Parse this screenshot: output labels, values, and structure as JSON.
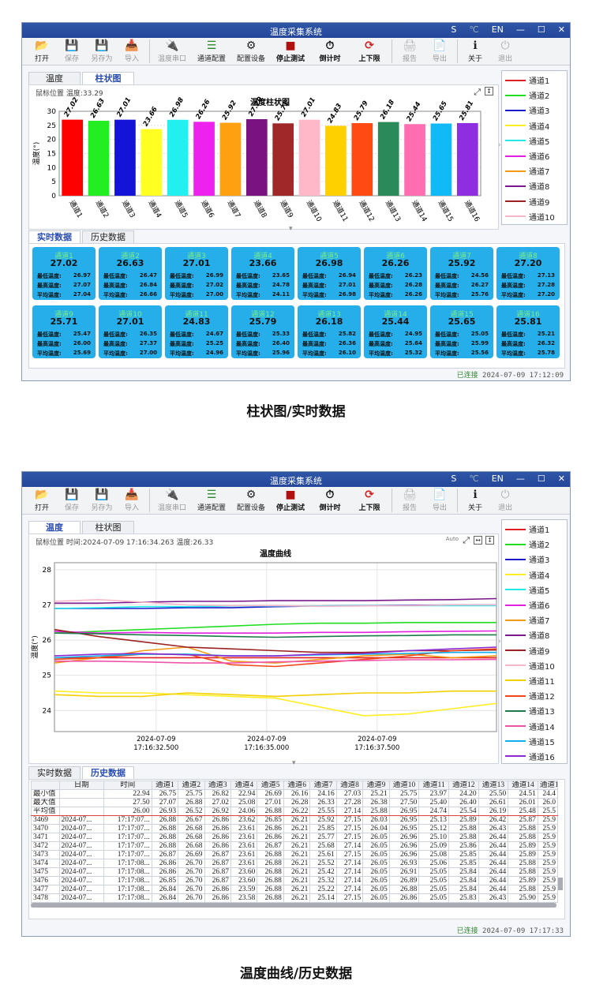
{
  "app": {
    "title": "温度采集系统",
    "ctrl_s": "S",
    "ctrl_c": "℃",
    "ctrl_en": "EN",
    "ctrl_min": "—",
    "ctrl_max": "☐",
    "ctrl_close": "✕"
  },
  "toolbar": [
    {
      "label": "打开",
      "icon": "📂",
      "dis": false
    },
    {
      "label": "保存",
      "icon": "💾",
      "dis": true
    },
    {
      "label": "另存为",
      "icon": "💾",
      "dis": true
    },
    {
      "label": "导入",
      "icon": "📥",
      "dis": true
    },
    {
      "sep": true
    },
    {
      "label": "温度串口",
      "icon": "🔌",
      "dis": true,
      "w": true
    },
    {
      "label": "通道配置",
      "icon": "☰",
      "dis": false,
      "w": true
    },
    {
      "label": "配置设备",
      "icon": "⚙",
      "dis": false,
      "w": true
    },
    {
      "label": "停止测试",
      "icon": "■",
      "dis": false,
      "w": true,
      "bold": true
    },
    {
      "label": "倒计时",
      "icon": "⏱",
      "dis": false,
      "w": true,
      "bold": true
    },
    {
      "label": "上下限",
      "icon": "⟳",
      "dis": false,
      "w": true,
      "bold": true
    },
    {
      "sep": true
    },
    {
      "label": "报告",
      "icon": "🖨",
      "dis": true
    },
    {
      "label": "导出",
      "icon": "📄",
      "dis": true
    },
    {
      "sep": true
    },
    {
      "label": "关于",
      "icon": "ℹ",
      "dis": false
    },
    {
      "label": "退出",
      "icon": "⏻",
      "dis": true
    }
  ],
  "tabs_top": [
    "温度",
    "柱状图"
  ],
  "tabs_bottom": [
    "实时数据",
    "历史数据"
  ],
  "legend": [
    {
      "name": "通道1",
      "color": "#e02020"
    },
    {
      "name": "通道2",
      "color": "#22dd22"
    },
    {
      "name": "通道3",
      "color": "#1a1acc"
    },
    {
      "name": "通道4",
      "color": "#ffee22"
    },
    {
      "name": "通道5",
      "color": "#22e8e8"
    },
    {
      "name": "通道6",
      "color": "#e022e0"
    },
    {
      "name": "通道7",
      "color": "#f29a16"
    },
    {
      "name": "通道8",
      "color": "#7a1a8a"
    },
    {
      "name": "通道9",
      "color": "#9a2222"
    },
    {
      "name": "通道10",
      "color": "#f6b8c8"
    },
    {
      "name": "通道11",
      "color": "#f2d000"
    },
    {
      "name": "通道12",
      "color": "#f04818"
    },
    {
      "name": "通道13",
      "color": "#1e7a4a"
    },
    {
      "name": "通道14",
      "color": "#ee55aa"
    },
    {
      "name": "通道15",
      "color": "#10b0ee"
    },
    {
      "name": "通道16",
      "color": "#8a2ad0"
    }
  ],
  "screen1": {
    "mouse_pos": "鼠标位置 温度:33.29",
    "chart_data": {
      "type": "bar",
      "title": "温度柱状图",
      "ylabel": "温度(°)",
      "ylim": [
        0,
        30
      ],
      "yticks": [
        0,
        5,
        10,
        15,
        20,
        25,
        30
      ],
      "categories": [
        "通道1",
        "通道2",
        "通道3",
        "通道4",
        "通道5",
        "通道6",
        "通道7",
        "通道8",
        "通道9",
        "通道10",
        "通道11",
        "通道12",
        "通道13",
        "通道14",
        "通道15",
        "通道16"
      ],
      "values": [
        27.02,
        26.63,
        27.01,
        23.66,
        26.98,
        26.26,
        25.92,
        27.2,
        25.71,
        27.01,
        24.83,
        25.79,
        26.18,
        25.44,
        25.65,
        25.81
      ],
      "labels": [
        "27.02",
        "26.63",
        "27.01",
        "23.66",
        "26.98",
        "26.26",
        "25.92",
        "27.20",
        "25.71",
        "27.01",
        "24.83",
        "25.79",
        "26.18",
        "25.44",
        "25.65",
        "25.81"
      ],
      "colors": [
        "#ff0000",
        "#22ee22",
        "#1414d8",
        "#ffff22",
        "#22f0f0",
        "#ee22ee",
        "#ffa010",
        "#7a1282",
        "#a02828",
        "#ffb8c8",
        "#ffd000",
        "#ff4a14",
        "#2a8a5a",
        "#ff6eb0",
        "#10baf6",
        "#8e2ee0"
      ]
    },
    "cards": [
      {
        "name": "通道1",
        "val": "27.02",
        "min": "26.97",
        "max": "27.07",
        "avg": "27.04"
      },
      {
        "name": "通道2",
        "val": "26.63",
        "min": "26.47",
        "max": "26.84",
        "avg": "26.66"
      },
      {
        "name": "通道3",
        "val": "27.01",
        "min": "26.99",
        "max": "27.02",
        "avg": "27.00"
      },
      {
        "name": "通道4",
        "val": "23.66",
        "min": "23.65",
        "max": "24.78",
        "avg": "24.11"
      },
      {
        "name": "通道5",
        "val": "26.98",
        "min": "26.94",
        "max": "27.01",
        "avg": "26.98"
      },
      {
        "name": "通道6",
        "val": "26.26",
        "min": "26.23",
        "max": "26.28",
        "avg": "26.26"
      },
      {
        "name": "通道7",
        "val": "25.92",
        "min": "24.56",
        "max": "26.27",
        "avg": "25.76"
      },
      {
        "name": "通道8",
        "val": "27.20",
        "min": "27.13",
        "max": "27.28",
        "avg": "27.20"
      },
      {
        "name": "通道9",
        "val": "25.71",
        "min": "25.47",
        "max": "26.00",
        "avg": "25.69"
      },
      {
        "name": "通道10",
        "val": "27.01",
        "min": "26.35",
        "max": "27.37",
        "avg": "27.00"
      },
      {
        "name": "通道11",
        "val": "24.83",
        "min": "24.67",
        "max": "25.25",
        "avg": "24.96"
      },
      {
        "name": "通道12",
        "val": "25.79",
        "min": "25.33",
        "max": "26.40",
        "avg": "25.96"
      },
      {
        "name": "通道13",
        "val": "26.18",
        "min": "25.82",
        "max": "26.36",
        "avg": "26.10"
      },
      {
        "name": "通道14",
        "val": "25.44",
        "min": "24.95",
        "max": "25.64",
        "avg": "25.32"
      },
      {
        "name": "通道15",
        "val": "25.65",
        "min": "25.05",
        "max": "25.99",
        "avg": "25.56"
      },
      {
        "name": "通道16",
        "val": "25.81",
        "min": "25.21",
        "max": "26.32",
        "avg": "25.78"
      }
    ],
    "card_labels": {
      "min": "最低温度:",
      "max": "最高温度:",
      "avg": "平均温度:"
    },
    "status_ok": "已连接",
    "status_time": "2024-07-09 17:12:09"
  },
  "caption1": "柱状图/实时数据",
  "screen2": {
    "mouse_pos": "鼠标位置 时间:2024-07-09 17:16:34.263 温度:26.33",
    "chart_data": {
      "type": "line",
      "title": "温度曲线",
      "ylabel": "温度(°)",
      "ylim": [
        23.4,
        28.2
      ],
      "yticks": [
        24,
        25,
        26,
        27,
        28
      ],
      "xticks": [
        "2024-07-09\n17:16:32.500",
        "2024-07-09\n17:16:35.000",
        "2024-07-09\n17:16:37.500"
      ],
      "x": [
        0,
        0.1,
        0.2,
        0.3,
        0.4,
        0.5,
        0.6,
        0.7,
        0.8,
        0.9,
        1.0
      ],
      "series": [
        {
          "name": "通道1",
          "color": "#e02020",
          "values": [
            25.5,
            25.5,
            25.5,
            25.5,
            25.5,
            25.5,
            25.5,
            25.5,
            25.5,
            25.5,
            25.5
          ]
        },
        {
          "name": "通道2",
          "color": "#22dd22",
          "values": [
            26.2,
            26.25,
            26.3,
            26.35,
            26.4,
            26.45,
            26.48,
            26.48,
            26.5,
            26.5,
            26.5
          ]
        },
        {
          "name": "通道3",
          "color": "#1a1acc",
          "values": [
            26.9,
            26.9,
            26.9,
            26.92,
            26.92,
            26.95,
            26.97,
            26.98,
            26.99,
            27.0,
            27.0
          ]
        },
        {
          "name": "通道4",
          "color": "#ffee22",
          "values": [
            24.55,
            24.5,
            24.5,
            24.45,
            24.4,
            24.35,
            24.1,
            23.85,
            23.9,
            24.05,
            24.2
          ]
        },
        {
          "name": "通道5",
          "color": "#22e8e8",
          "values": [
            26.9,
            26.92,
            26.95,
            26.95,
            26.97,
            26.97,
            26.97,
            26.98,
            26.98,
            26.98,
            26.98
          ]
        },
        {
          "name": "通道6",
          "color": "#e022e0",
          "values": [
            26.25,
            26.2,
            26.22,
            26.2,
            26.2,
            26.2,
            26.22,
            26.22,
            26.24,
            26.25,
            26.26
          ]
        },
        {
          "name": "通道7",
          "color": "#f29a16",
          "values": [
            25.35,
            25.5,
            25.7,
            25.8,
            25.4,
            25.35,
            25.45,
            25.55,
            25.6,
            25.5,
            25.55
          ]
        },
        {
          "name": "通道8",
          "color": "#7a1a8a",
          "values": [
            27.05,
            27.05,
            27.08,
            27.1,
            27.1,
            27.12,
            27.12,
            27.12,
            27.14,
            27.15,
            27.18
          ]
        },
        {
          "name": "通道9",
          "color": "#9a2222",
          "values": [
            26.3,
            26.1,
            25.95,
            25.8,
            25.75,
            25.7,
            25.65,
            25.65,
            25.7,
            25.7,
            25.72
          ]
        },
        {
          "name": "通道10",
          "color": "#f6b8c8",
          "values": [
            27.1,
            27.15,
            27.08,
            27.0,
            26.98,
            26.98,
            26.96,
            26.97,
            26.98,
            27.0,
            27.0
          ]
        },
        {
          "name": "通道11",
          "color": "#f2d000",
          "values": [
            24.45,
            24.4,
            24.4,
            24.5,
            24.45,
            24.4,
            24.45,
            24.5,
            24.5,
            24.55,
            24.55
          ]
        },
        {
          "name": "通道12",
          "color": "#f04818",
          "values": [
            25.45,
            25.5,
            25.6,
            25.6,
            25.3,
            25.25,
            25.35,
            25.45,
            25.55,
            25.7,
            25.75
          ]
        },
        {
          "name": "通道13",
          "color": "#1e7a4a",
          "values": [
            26.2,
            26.18,
            26.15,
            26.13,
            26.1,
            26.08,
            26.1,
            26.12,
            26.13,
            26.15,
            26.15
          ]
        },
        {
          "name": "通道14",
          "color": "#ee55aa",
          "values": [
            25.4,
            25.4,
            25.38,
            25.35,
            25.35,
            25.38,
            25.4,
            25.42,
            25.44,
            25.44,
            25.45
          ]
        },
        {
          "name": "通道15",
          "color": "#10b0ee",
          "values": [
            25.5,
            25.55,
            25.6,
            25.6,
            25.55,
            25.55,
            25.58,
            25.6,
            25.62,
            25.65,
            25.65
          ]
        },
        {
          "name": "通道16",
          "color": "#8a2ad0",
          "values": [
            25.55,
            25.6,
            25.62,
            25.58,
            25.55,
            25.55,
            25.6,
            25.62,
            25.7,
            25.75,
            25.8
          ]
        }
      ]
    },
    "table": {
      "headers": [
        "",
        "日期",
        "时间",
        "通道1",
        "通道2",
        "通道3",
        "通道4",
        "通道5",
        "通道6",
        "通道7",
        "通道8",
        "通道9",
        "通道10",
        "通道11",
        "通道12",
        "通道13",
        "通道14",
        "通道1"
      ],
      "stats": [
        [
          "最小值",
          "",
          "22.94",
          "26.75",
          "25.75",
          "26.82",
          "22.94",
          "26.69",
          "26.16",
          "24.16",
          "27.03",
          "25.21",
          "25.75",
          "23.97",
          "24.20",
          "25.50",
          "24.51",
          "24.4"
        ],
        [
          "最大值",
          "",
          "27.50",
          "27.07",
          "26.88",
          "27.02",
          "25.08",
          "27.01",
          "26.28",
          "26.33",
          "27.28",
          "26.38",
          "27.50",
          "25.40",
          "26.40",
          "26.61",
          "26.01",
          "26.0"
        ],
        [
          "平均值",
          "",
          "26.00",
          "26.93",
          "26.52",
          "26.92",
          "24.06",
          "26.88",
          "26.22",
          "25.55",
          "27.14",
          "25.88",
          "26.95",
          "24.74",
          "25.54",
          "26.19",
          "25.48",
          "25.5"
        ]
      ],
      "rows": [
        [
          "3469",
          "2024-07...",
          "17:17:07...",
          "26.88",
          "26.67",
          "26.86",
          "23.62",
          "26.85",
          "26.21",
          "25.92",
          "27.15",
          "26.03",
          "26.95",
          "25.13",
          "25.89",
          "26.42",
          "25.87",
          "25.9"
        ],
        [
          "3470",
          "2024-07...",
          "17:17:07...",
          "26.88",
          "26.68",
          "26.86",
          "23.61",
          "26.86",
          "26.21",
          "25.85",
          "27.15",
          "26.04",
          "26.95",
          "25.12",
          "25.88",
          "26.43",
          "25.88",
          "25.9"
        ],
        [
          "3471",
          "2024-07...",
          "17:17:07...",
          "26.88",
          "26.68",
          "26.86",
          "23.61",
          "26.86",
          "26.21",
          "25.77",
          "27.15",
          "26.05",
          "26.96",
          "25.10",
          "25.88",
          "26.44",
          "25.88",
          "25.9"
        ],
        [
          "3472",
          "2024-07...",
          "17:17:07...",
          "26.88",
          "26.68",
          "26.86",
          "23.61",
          "26.87",
          "26.21",
          "25.68",
          "27.14",
          "26.05",
          "26.96",
          "25.09",
          "25.86",
          "26.44",
          "25.89",
          "25.9"
        ],
        [
          "3473",
          "2024-07...",
          "17:17:07...",
          "26.87",
          "26.69",
          "26.87",
          "23.61",
          "26.88",
          "26.21",
          "25.61",
          "27.15",
          "26.05",
          "26.96",
          "25.08",
          "25.85",
          "26.44",
          "25.89",
          "25.9"
        ],
        [
          "3474",
          "2024-07...",
          "17:17:08...",
          "26.86",
          "26.70",
          "26.87",
          "23.61",
          "26.88",
          "26.21",
          "25.52",
          "27.14",
          "26.05",
          "26.93",
          "25.06",
          "25.85",
          "26.44",
          "25.88",
          "25.9"
        ],
        [
          "3475",
          "2024-07...",
          "17:17:08...",
          "26.86",
          "26.70",
          "26.87",
          "23.60",
          "26.88",
          "26.21",
          "25.42",
          "27.14",
          "26.05",
          "26.91",
          "25.05",
          "25.84",
          "26.44",
          "25.88",
          "25.9"
        ],
        [
          "3476",
          "2024-07...",
          "17:17:08...",
          "26.85",
          "26.70",
          "26.87",
          "23.60",
          "26.88",
          "26.21",
          "25.32",
          "27.14",
          "26.05",
          "26.89",
          "25.05",
          "25.84",
          "26.44",
          "25.89",
          "25.9"
        ],
        [
          "3477",
          "2024-07...",
          "17:17:08...",
          "26.84",
          "26.70",
          "26.86",
          "23.59",
          "26.88",
          "26.21",
          "25.22",
          "27.14",
          "26.05",
          "26.88",
          "25.05",
          "25.84",
          "26.44",
          "25.88",
          "25.9"
        ],
        [
          "3478",
          "2024-07...",
          "17:17:08...",
          "26.84",
          "26.70",
          "26.86",
          "23.58",
          "26.88",
          "26.21",
          "25.14",
          "27.15",
          "26.05",
          "26.86",
          "25.05",
          "25.83",
          "26.43",
          "25.90",
          "25.9"
        ]
      ]
    },
    "status_ok": "已连接",
    "status_time": "2024-07-09 17:17:33"
  },
  "caption2": "温度曲线/历史数据"
}
